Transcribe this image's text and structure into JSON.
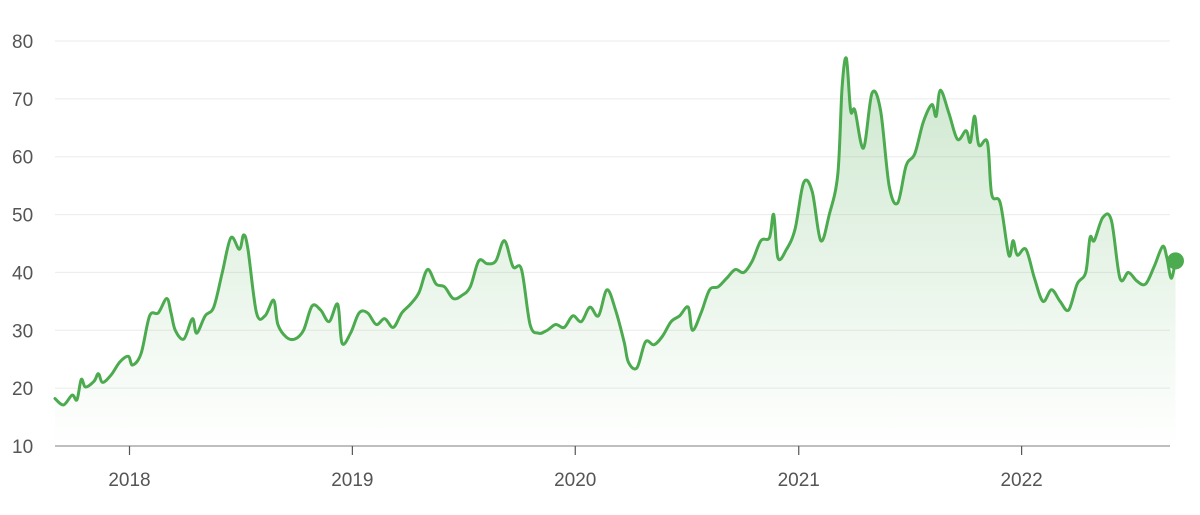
{
  "chart_data": {
    "type": "area",
    "xlim": [
      "2017-09-01",
      "2022-09-01"
    ],
    "ylim": [
      10,
      80
    ],
    "y_ticks": [
      10,
      20,
      30,
      40,
      50,
      60,
      70,
      80
    ],
    "x_ticks": [
      {
        "date": "2018-01-01",
        "label": "2018"
      },
      {
        "date": "2019-01-01",
        "label": "2019"
      },
      {
        "date": "2020-01-01",
        "label": "2020"
      },
      {
        "date": "2021-01-01",
        "label": "2021"
      },
      {
        "date": "2022-01-01",
        "label": "2022"
      }
    ],
    "grid": true,
    "line_color": "#4caa4f",
    "fill_color": "#4caa4f",
    "series": [
      {
        "points": [
          [
            "2017-09-01",
            18.2
          ],
          [
            "2017-09-15",
            17.1
          ],
          [
            "2017-09-29",
            18.8
          ],
          [
            "2017-10-07",
            18.0
          ],
          [
            "2017-10-14",
            21.5
          ],
          [
            "2017-10-21",
            20.2
          ],
          [
            "2017-11-04",
            21.2
          ],
          [
            "2017-11-11",
            22.5
          ],
          [
            "2017-11-18",
            21.0
          ],
          [
            "2017-12-02",
            22.3
          ],
          [
            "2017-12-16",
            24.5
          ],
          [
            "2017-12-30",
            25.5
          ],
          [
            "2018-01-06",
            24.0
          ],
          [
            "2018-01-20",
            26.0
          ],
          [
            "2018-02-03",
            32.5
          ],
          [
            "2018-02-17",
            33.0
          ],
          [
            "2018-03-03",
            35.5
          ],
          [
            "2018-03-10",
            33.0
          ],
          [
            "2018-03-17",
            30.0
          ],
          [
            "2018-03-31",
            28.5
          ],
          [
            "2018-04-14",
            32.0
          ],
          [
            "2018-04-21",
            29.5
          ],
          [
            "2018-05-05",
            32.5
          ],
          [
            "2018-05-19",
            34.0
          ],
          [
            "2018-06-02",
            40.0
          ],
          [
            "2018-06-16",
            46.0
          ],
          [
            "2018-06-30",
            44.0
          ],
          [
            "2018-07-07",
            46.5
          ],
          [
            "2018-07-14",
            44.0
          ],
          [
            "2018-07-28",
            33.0
          ],
          [
            "2018-08-11",
            32.5
          ],
          [
            "2018-08-25",
            35.2
          ],
          [
            "2018-09-01",
            31.0
          ],
          [
            "2018-09-15",
            28.8
          ],
          [
            "2018-09-29",
            28.5
          ],
          [
            "2018-10-13",
            30.0
          ],
          [
            "2018-10-27",
            34.2
          ],
          [
            "2018-11-10",
            33.5
          ],
          [
            "2018-11-24",
            31.5
          ],
          [
            "2018-12-08",
            34.5
          ],
          [
            "2018-12-15",
            27.8
          ],
          [
            "2018-12-29",
            29.5
          ],
          [
            "2019-01-12",
            33.0
          ],
          [
            "2019-01-26",
            33.0
          ],
          [
            "2019-02-09",
            31.0
          ],
          [
            "2019-02-23",
            32.0
          ],
          [
            "2019-03-09",
            30.5
          ],
          [
            "2019-03-23",
            33.0
          ],
          [
            "2019-04-06",
            34.5
          ],
          [
            "2019-04-20",
            36.5
          ],
          [
            "2019-05-04",
            40.5
          ],
          [
            "2019-05-18",
            38.0
          ],
          [
            "2019-06-01",
            37.5
          ],
          [
            "2019-06-15",
            35.5
          ],
          [
            "2019-06-29",
            36.0
          ],
          [
            "2019-07-13",
            37.5
          ],
          [
            "2019-07-27",
            42.0
          ],
          [
            "2019-08-10",
            41.5
          ],
          [
            "2019-08-24",
            42.0
          ],
          [
            "2019-09-07",
            45.5
          ],
          [
            "2019-09-21",
            41.0
          ],
          [
            "2019-10-05",
            40.5
          ],
          [
            "2019-10-19",
            31.0
          ],
          [
            "2019-11-02",
            29.5
          ],
          [
            "2019-11-16",
            30.0
          ],
          [
            "2019-11-30",
            31.0
          ],
          [
            "2019-12-14",
            30.5
          ],
          [
            "2019-12-28",
            32.5
          ],
          [
            "2020-01-11",
            31.5
          ],
          [
            "2020-01-25",
            34.0
          ],
          [
            "2020-02-08",
            32.5
          ],
          [
            "2020-02-22",
            37.0
          ],
          [
            "2020-03-07",
            33.5
          ],
          [
            "2020-03-21",
            28.0
          ],
          [
            "2020-03-28",
            24.5
          ],
          [
            "2020-04-11",
            23.5
          ],
          [
            "2020-04-25",
            28.0
          ],
          [
            "2020-05-09",
            27.5
          ],
          [
            "2020-05-23",
            29.0
          ],
          [
            "2020-06-06",
            31.5
          ],
          [
            "2020-06-20",
            32.5
          ],
          [
            "2020-07-04",
            34.0
          ],
          [
            "2020-07-11",
            30.0
          ],
          [
            "2020-07-25",
            33.0
          ],
          [
            "2020-08-08",
            37.0
          ],
          [
            "2020-08-22",
            37.5
          ],
          [
            "2020-09-05",
            39.0
          ],
          [
            "2020-09-19",
            40.5
          ],
          [
            "2020-10-03",
            40.0
          ],
          [
            "2020-10-17",
            42.0
          ],
          [
            "2020-10-31",
            45.5
          ],
          [
            "2020-11-14",
            46.0
          ],
          [
            "2020-11-21",
            50.0
          ],
          [
            "2020-11-28",
            42.5
          ],
          [
            "2020-12-12",
            44.0
          ],
          [
            "2020-12-26",
            47.5
          ],
          [
            "2021-01-09",
            55.5
          ],
          [
            "2021-01-23",
            54.0
          ],
          [
            "2021-02-06",
            45.5
          ],
          [
            "2021-02-20",
            50.0
          ],
          [
            "2021-03-06",
            57.0
          ],
          [
            "2021-03-13",
            72.0
          ],
          [
            "2021-03-20",
            77.0
          ],
          [
            "2021-03-27",
            68.0
          ],
          [
            "2021-04-03",
            68.0
          ],
          [
            "2021-04-17",
            61.5
          ],
          [
            "2021-05-01",
            71.0
          ],
          [
            "2021-05-15",
            68.0
          ],
          [
            "2021-05-29",
            55.0
          ],
          [
            "2021-06-12",
            52.0
          ],
          [
            "2021-06-26",
            58.5
          ],
          [
            "2021-07-10",
            60.5
          ],
          [
            "2021-07-24",
            66.0
          ],
          [
            "2021-08-07",
            69.0
          ],
          [
            "2021-08-14",
            67.0
          ],
          [
            "2021-08-21",
            71.5
          ],
          [
            "2021-09-04",
            67.5
          ],
          [
            "2021-09-18",
            63.0
          ],
          [
            "2021-10-02",
            64.5
          ],
          [
            "2021-10-09",
            62.5
          ],
          [
            "2021-10-16",
            67.0
          ],
          [
            "2021-10-23",
            62.0
          ],
          [
            "2021-11-06",
            62.5
          ],
          [
            "2021-11-13",
            53.5
          ],
          [
            "2021-11-27",
            52.0
          ],
          [
            "2021-12-11",
            43.0
          ],
          [
            "2021-12-18",
            45.5
          ],
          [
            "2021-12-25",
            43.0
          ],
          [
            "2022-01-08",
            44.0
          ],
          [
            "2022-01-22",
            39.0
          ],
          [
            "2022-02-05",
            35.0
          ],
          [
            "2022-02-19",
            37.0
          ],
          [
            "2022-03-05",
            35.0
          ],
          [
            "2022-03-19",
            33.5
          ],
          [
            "2022-04-02",
            38.0
          ],
          [
            "2022-04-16",
            40.0
          ],
          [
            "2022-04-23",
            46.0
          ],
          [
            "2022-04-30",
            45.5
          ],
          [
            "2022-05-14",
            49.5
          ],
          [
            "2022-05-28",
            49.0
          ],
          [
            "2022-06-11",
            39.0
          ],
          [
            "2022-06-25",
            40.0
          ],
          [
            "2022-07-09",
            38.5
          ],
          [
            "2022-07-23",
            38.0
          ],
          [
            "2022-08-06",
            41.0
          ],
          [
            "2022-08-20",
            44.5
          ],
          [
            "2022-08-27",
            42.5
          ],
          [
            "2022-09-03",
            39.0
          ],
          [
            "2022-09-10",
            42.0
          ]
        ],
        "last_point": [
          "2022-09-10",
          42.0
        ]
      }
    ]
  }
}
